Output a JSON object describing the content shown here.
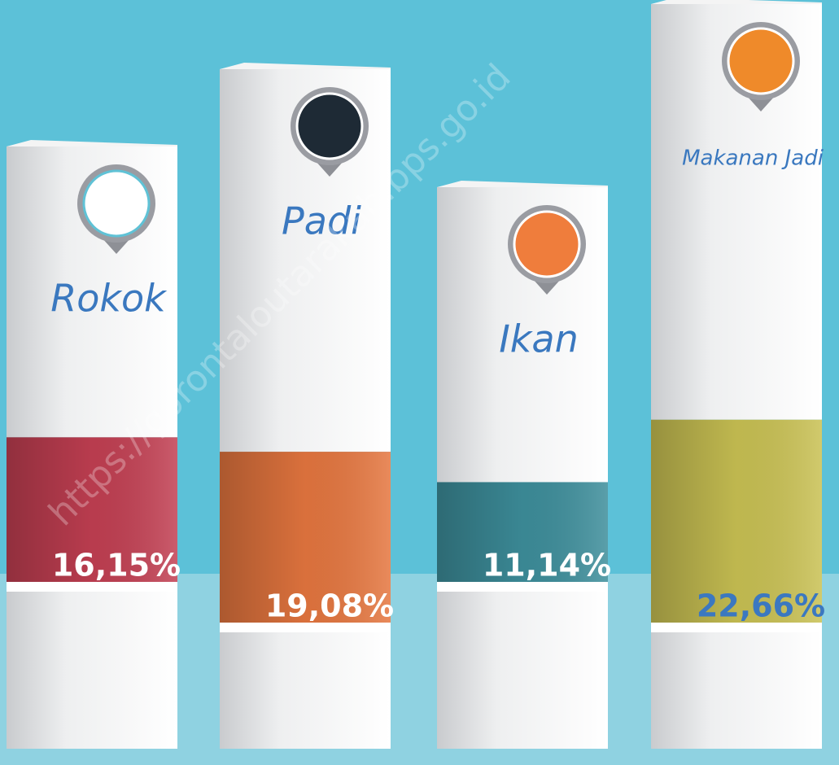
{
  "chart_data": {
    "type": "bar",
    "categories": [
      "Rokok",
      "Padi",
      "Ikan",
      "Makanan Jadi"
    ],
    "values": [
      16.15,
      19.08,
      11.14,
      22.66
    ],
    "value_labels": [
      "16,15%",
      "19,08%",
      "11,14%",
      "22,66%"
    ],
    "colors": [
      "#c23f52",
      "#e5763f",
      "#3d8e9b",
      "#c9c153"
    ],
    "label_colors": [
      "#ffffff",
      "#ffffff",
      "#ffffff",
      "#3b78c0"
    ],
    "watermark": "https://gorontaloutarakab.bps.go.id"
  }
}
